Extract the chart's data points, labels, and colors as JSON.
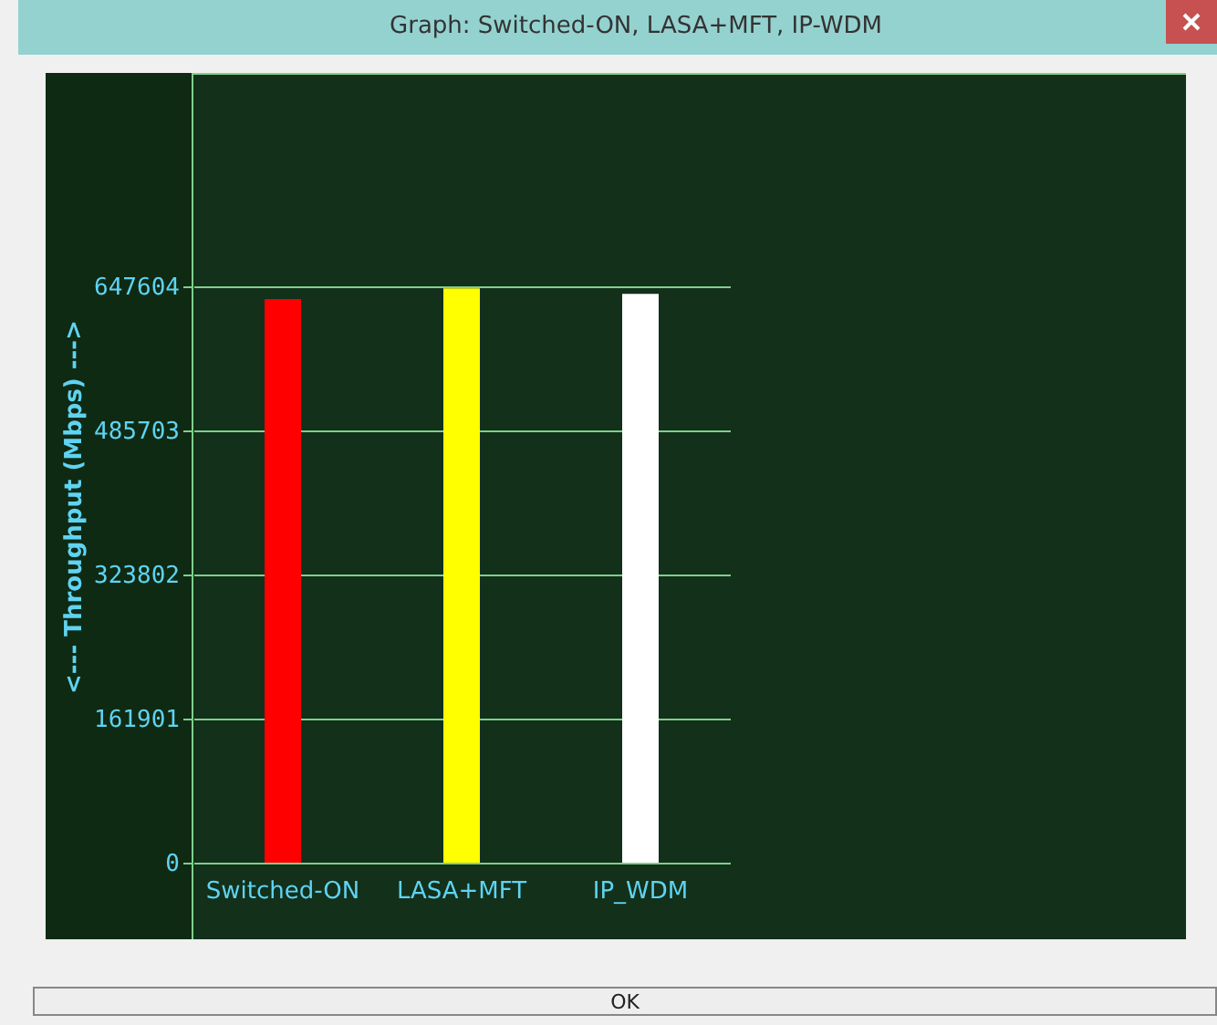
{
  "chart_data": {
    "type": "bar",
    "title": "Graph: Switched-ON, LASA+MFT, IP-WDM",
    "ylabel": "<--- Throughput (Mbps) --->",
    "categories": [
      "Switched-ON",
      "LASA+MFT",
      "IP_WDM"
    ],
    "values": [
      633000,
      645000,
      639000
    ],
    "colors": [
      "#ff0000",
      "#ffff00",
      "#ffffff"
    ],
    "ylim": [
      -86000,
      887000
    ],
    "yticks": [
      0,
      161901,
      323802,
      485703,
      647604
    ],
    "grid": "y",
    "annotations": [
      "OK"
    ]
  }
}
